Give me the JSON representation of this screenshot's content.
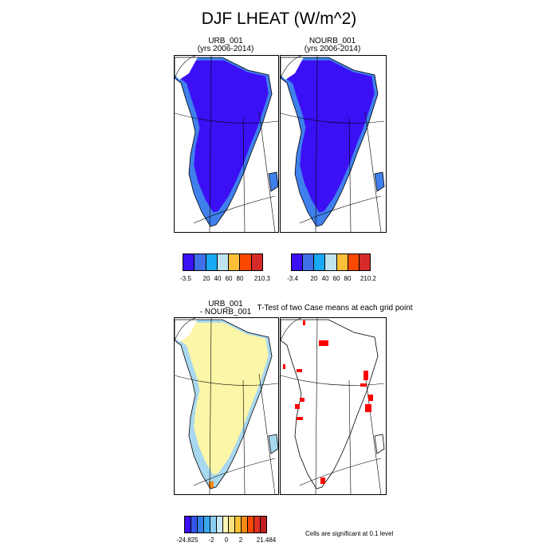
{
  "figure": {
    "title": "DJF LHEAT (W/m^2)",
    "panel_urb": {
      "line1": "URB_001",
      "line2": "(yrs 2006-2014)"
    },
    "panel_nourb": {
      "line1": "NOURB_001",
      "line2": "(yrs 2006-2014)"
    },
    "panel_diff": {
      "line1": "URB_001",
      "line2": "- NOURB_001"
    },
    "panel_ttest": {
      "title": "T-Test of two Case means at each grid point"
    },
    "colorbar_urb": {
      "labels": [
        "-3.5",
        "20",
        "40",
        "60",
        "80",
        "210.3"
      ],
      "colors": [
        "#3b10f5",
        "#3f70e8",
        "#1aa9f5",
        "#bfe3ef",
        "#fbc038",
        "#fb4a00",
        "#d42a2a"
      ]
    },
    "colorbar_nourb": {
      "labels": [
        "-3.4",
        "20",
        "40",
        "60",
        "80",
        "210.2"
      ],
      "colors": [
        "#3b10f5",
        "#3f70e8",
        "#1aa9f5",
        "#bfe3ef",
        "#fbc038",
        "#fb4a00",
        "#d42a2a"
      ]
    },
    "colorbar_diff": {
      "labels": [
        "-24.825",
        "-2",
        "0",
        "2",
        "21.484"
      ],
      "colors": [
        "#3b10f5",
        "#3355e8",
        "#2f7ee8",
        "#38a8ee",
        "#8bcff0",
        "#c8e8f2",
        "#fbf6b0",
        "#fbe080",
        "#fbc038",
        "#fb8a10",
        "#fb4a00",
        "#e03020",
        "#c02020"
      ]
    },
    "significance_note": "Cells are significant at 0.1 level",
    "map_colors": {
      "urb_main": "#3b10f5",
      "urb_edge": "#3f80ec",
      "diff_main": "#fbf6a8",
      "diff_edge": "#a8d8ef",
      "diff_warm": "#fb8a10",
      "significant": "#ff0000"
    }
  }
}
